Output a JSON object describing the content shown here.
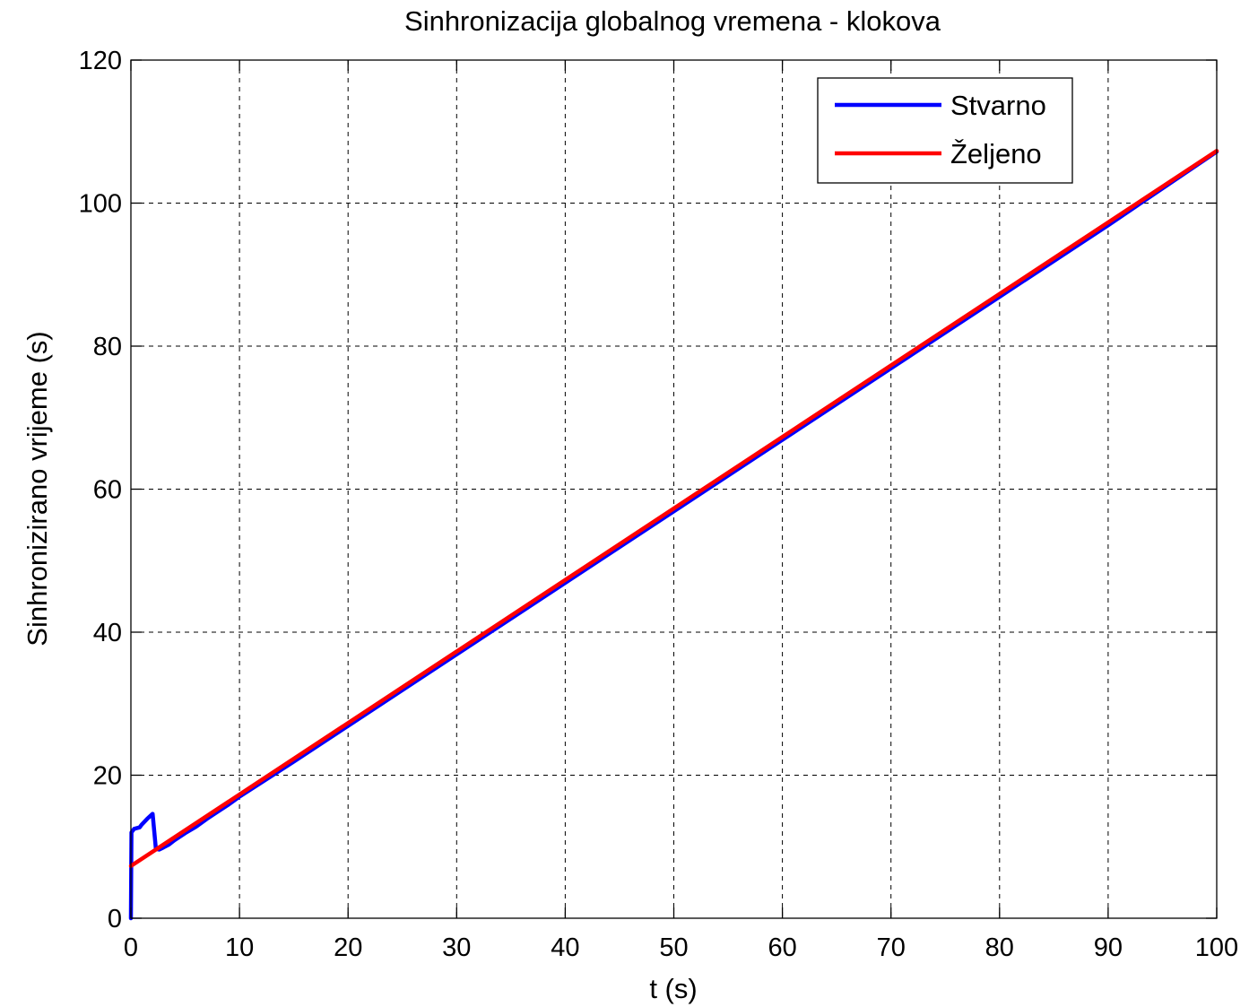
{
  "chart_data": {
    "type": "line",
    "title": "Sinhronizacija globalnog vremena - klokova",
    "xlabel": "t (s)",
    "ylabel": "Sinhronizirano vrijeme (s)",
    "xlim": [
      0,
      100
    ],
    "ylim": [
      0,
      120
    ],
    "xticks": [
      0,
      10,
      20,
      30,
      40,
      50,
      60,
      70,
      80,
      90,
      100
    ],
    "yticks": [
      0,
      20,
      40,
      60,
      80,
      100,
      120
    ],
    "xtick_labels": [
      "0",
      "10",
      "20",
      "30",
      "40",
      "50",
      "60",
      "70",
      "80",
      "90",
      "100"
    ],
    "ytick_labels": [
      "0",
      "20",
      "40",
      "60",
      "80",
      "100",
      "120"
    ],
    "grid": true,
    "legend_position": "top-right",
    "series": [
      {
        "name": "Stvarno",
        "color": "#0000ff",
        "x": [
          0,
          0.05,
          0.3,
          0.8,
          1.0,
          1.5,
          2.0,
          2.3,
          2.6,
          3.0,
          3.5,
          4.0,
          5.0,
          6.0,
          7.0,
          8.0,
          9.0,
          10.0,
          15.0,
          20.0,
          30.0,
          40.0,
          50.0,
          60.0,
          70.0,
          80.0,
          90.0,
          100.0
        ],
        "y": [
          0,
          12.0,
          12.5,
          12.7,
          13.1,
          13.9,
          14.6,
          9.7,
          9.6,
          9.9,
          10.3,
          10.9,
          11.9,
          12.8,
          13.9,
          14.9,
          15.9,
          17.0,
          21.9,
          26.9,
          36.9,
          46.9,
          56.9,
          66.9,
          76.9,
          86.9,
          96.9,
          107.2
        ]
      },
      {
        "name": "Željeno",
        "color": "#ff0000",
        "x": [
          0,
          100
        ],
        "y": [
          7.3,
          107.3
        ]
      }
    ]
  }
}
